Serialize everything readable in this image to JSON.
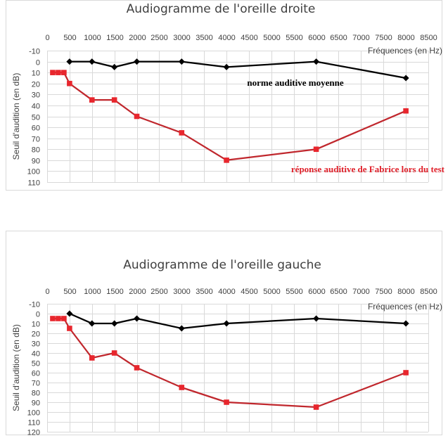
{
  "chart_data": [
    {
      "type": "line",
      "title": "Audiogramme de l'oreille droite",
      "xlabel": "Fréquences (en Hz)",
      "ylabel": "Seuil d'audition (en dB)",
      "xlim": [
        0,
        8500
      ],
      "ylim": [
        -10,
        110
      ],
      "y_inverted": true,
      "x_ticks": [
        "0",
        "500",
        "1000",
        "1500",
        "2000",
        "2500",
        "3000",
        "3500",
        "4000",
        "4500",
        "5000",
        "5500",
        "6000",
        "6500",
        "7000",
        "7500",
        "8000",
        "8500"
      ],
      "y_ticks": [
        "-10",
        "0",
        "10",
        "20",
        "30",
        "40",
        "50",
        "60",
        "70",
        "80",
        "90",
        "100",
        "110"
      ],
      "grid": true,
      "series": [
        {
          "name": "norme auditive moyenne",
          "color": "#000000",
          "marker": "diamond",
          "points": [
            [
              500,
              0
            ],
            [
              1000,
              0
            ],
            [
              1500,
              5
            ],
            [
              2000,
              0
            ],
            [
              3000,
              0
            ],
            [
              4000,
              5
            ],
            [
              6000,
              0
            ],
            [
              8000,
              15
            ]
          ]
        },
        {
          "name": "réponse auditive de Fabrice lors du test",
          "color": "#c0272d",
          "marker": "square",
          "points": [
            [
              125,
              10
            ],
            [
              250,
              10
            ],
            [
              375,
              10
            ],
            [
              500,
              20
            ],
            [
              1000,
              35
            ],
            [
              1500,
              35
            ],
            [
              2000,
              50
            ],
            [
              3000,
              65
            ],
            [
              4000,
              90
            ],
            [
              6000,
              80
            ],
            [
              8000,
              45
            ]
          ]
        }
      ],
      "annotations": [
        {
          "text": "norme auditive moyenne",
          "color": "#000000"
        },
        {
          "text": "réponse auditive de Fabrice lors du test",
          "color": "#e0202a"
        }
      ]
    },
    {
      "type": "line",
      "title": "Audiogramme de l'oreille gauche",
      "xlabel": "Fréquences (en Hz)",
      "ylabel": "Seuil d'audition  (en dB)",
      "xlim": [
        0,
        8500
      ],
      "ylim": [
        -10,
        120
      ],
      "y_inverted": true,
      "x_ticks": [
        "0",
        "500",
        "1000",
        "1500",
        "2000",
        "2500",
        "3000",
        "3500",
        "4000",
        "4500",
        "5000",
        "5500",
        "6000",
        "6500",
        "7000",
        "7500",
        "8000",
        "8500"
      ],
      "y_ticks": [
        "-10",
        "0",
        "10",
        "20",
        "30",
        "40",
        "50",
        "60",
        "70",
        "80",
        "90",
        "100",
        "110",
        "120"
      ],
      "grid": true,
      "series": [
        {
          "name": "",
          "color": "#000000",
          "marker": "diamond",
          "points": [
            [
              500,
              0
            ],
            [
              1000,
              10
            ],
            [
              1500,
              10
            ],
            [
              2000,
              5
            ],
            [
              3000,
              15
            ],
            [
              4000,
              10
            ],
            [
              6000,
              5
            ],
            [
              8000,
              10
            ]
          ]
        },
        {
          "name": "",
          "color": "#c0272d",
          "marker": "square",
          "points": [
            [
              125,
              5
            ],
            [
              250,
              5
            ],
            [
              375,
              5
            ],
            [
              500,
              15
            ],
            [
              1000,
              45
            ],
            [
              1500,
              40
            ],
            [
              2000,
              55
            ],
            [
              3000,
              75
            ],
            [
              4000,
              90
            ],
            [
              6000,
              95
            ],
            [
              8000,
              60
            ]
          ]
        }
      ],
      "annotations": []
    }
  ]
}
